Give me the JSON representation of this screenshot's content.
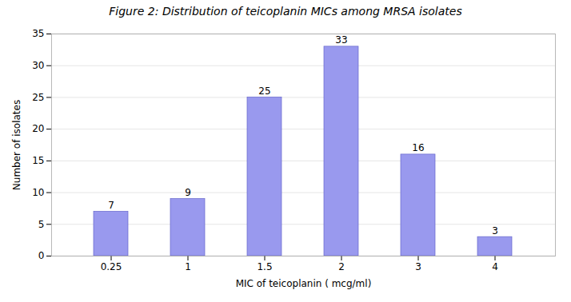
{
  "chart_data": {
    "type": "bar",
    "title": "Figure 2: Distribution of teicoplanin MICs among MRSA isolates",
    "categories": [
      "0.25",
      "1",
      "1.5",
      "2",
      "3",
      "4"
    ],
    "values": [
      7,
      9,
      25,
      33,
      16,
      3
    ],
    "color": "#9999EE",
    "xlabel": "MIC of teicoplanin ( mcg/ml)",
    "ylabel": "Number of isolates",
    "ylim": [
      0,
      35
    ],
    "yticks": [
      0,
      5,
      10,
      15,
      20,
      25,
      30,
      35
    ],
    "grid": true,
    "data_labels": true
  }
}
